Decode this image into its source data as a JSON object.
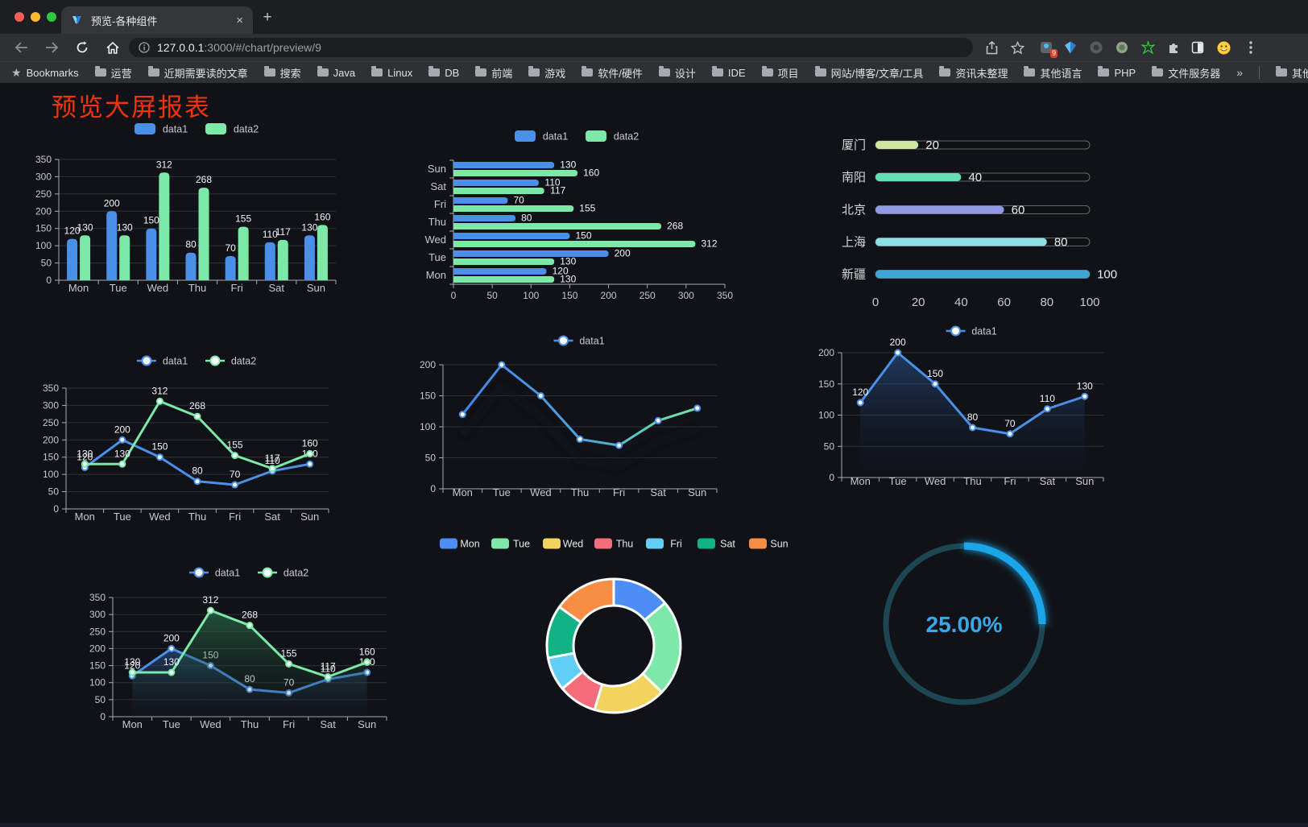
{
  "browser": {
    "tab_title": "预览-各种组件",
    "url_host": "127.0.0.1",
    "url_rest": ":3000/#/chart/preview/9",
    "bookmarks_label": "Bookmarks",
    "bookmarks": [
      "运营",
      "近期需要读的文章",
      "搜索",
      "Java",
      "Linux",
      "DB",
      "前端",
      "游戏",
      "软件/硬件",
      "设计",
      "IDE",
      "项目",
      "网站/博客/文章/工具",
      "资讯未整理",
      "其他语言",
      "PHP",
      "文件服务器"
    ],
    "bookmarks_overflow": "»",
    "other_bookmarks": "其他书签",
    "extension_badge": "9",
    "new_tab_label": "+",
    "tab_close_label": "×"
  },
  "page": {
    "title": "预览大屏报表",
    "title_color": "#f4330e",
    "background": "#111217",
    "axis_label_color": "#c6c8cb",
    "grid_color": "#31333a",
    "axis_line_color": "#a9abaf",
    "value_label_color": "#f2f3f5"
  },
  "chart_data": [
    {
      "id": "bar-vertical",
      "type": "bar",
      "title": "",
      "categories": [
        "Mon",
        "Tue",
        "Wed",
        "Thu",
        "Fri",
        "Sat",
        "Sun"
      ],
      "series": [
        {
          "name": "data1",
          "color": "#4A90E9",
          "values": [
            120,
            200,
            150,
            80,
            70,
            110,
            130
          ]
        },
        {
          "name": "data2",
          "color": "#7CE9A9",
          "values": [
            130,
            130,
            312,
            268,
            155,
            117,
            160
          ]
        }
      ],
      "ylim": [
        0,
        350
      ],
      "yticks": [
        0,
        50,
        100,
        150,
        200,
        250,
        300,
        350
      ],
      "legend_position": "top",
      "grid": true,
      "show_labels": true
    },
    {
      "id": "bar-horizontal",
      "type": "bar",
      "orientation": "horizontal",
      "categories": [
        "Mon",
        "Tue",
        "Wed",
        "Thu",
        "Fri",
        "Sat",
        "Sun"
      ],
      "categories_top_to_bottom": [
        "Sun",
        "Sat",
        "Fri",
        "Thu",
        "Wed",
        "Tue",
        "Mon"
      ],
      "series": [
        {
          "name": "data1",
          "color": "#4A90E9",
          "values": [
            120,
            200,
            150,
            80,
            70,
            110,
            130
          ]
        },
        {
          "name": "data2",
          "color": "#7CE9A9",
          "values": [
            130,
            130,
            312,
            268,
            155,
            117,
            160
          ]
        }
      ],
      "xlim": [
        0,
        350
      ],
      "xticks": [
        0,
        50,
        100,
        150,
        200,
        250,
        300,
        350
      ],
      "legend_position": "top",
      "show_labels": true
    },
    {
      "id": "progress-bars",
      "type": "bar",
      "orientation": "horizontal-progress",
      "categories": [
        "厦门",
        "南阳",
        "北京",
        "上海",
        "新疆"
      ],
      "values": [
        20,
        40,
        60,
        80,
        100
      ],
      "colors": [
        "#CBE7A2",
        "#63DFB2",
        "#9199E3",
        "#8AE0E2",
        "#3FA7D6"
      ],
      "xlim": [
        0,
        100
      ],
      "xticks": [
        0,
        20,
        40,
        60,
        80,
        100
      ],
      "track_border_color": "#63666b",
      "show_labels": true
    },
    {
      "id": "line-two-series",
      "type": "line",
      "categories": [
        "Mon",
        "Tue",
        "Wed",
        "Thu",
        "Fri",
        "Sat",
        "Sun"
      ],
      "series": [
        {
          "name": "data1",
          "color": "#4A90E9",
          "values": [
            120,
            200,
            150,
            80,
            70,
            110,
            130
          ]
        },
        {
          "name": "data2",
          "color": "#7CE9A9",
          "values": [
            130,
            130,
            312,
            268,
            155,
            117,
            160
          ]
        }
      ],
      "ylim": [
        0,
        350
      ],
      "yticks": [
        0,
        50,
        100,
        150,
        200,
        250,
        300,
        350
      ],
      "legend_position": "top",
      "show_labels": true
    },
    {
      "id": "line-gradient",
      "type": "line",
      "categories": [
        "Mon",
        "Tue",
        "Wed",
        "Thu",
        "Fri",
        "Sat",
        "Sun"
      ],
      "series": [
        {
          "name": "data1",
          "color": "#4A90E9",
          "gradient": [
            "#4285EC",
            "#49A8E0",
            "#6FE6A4"
          ],
          "values": [
            120,
            200,
            150,
            80,
            70,
            110,
            130
          ]
        }
      ],
      "ylim": [
        0,
        200
      ],
      "yticks": [
        0,
        50,
        100,
        150,
        200
      ],
      "legend_position": "top",
      "show_labels": false,
      "shadow": true
    },
    {
      "id": "line-area-single",
      "type": "area",
      "categories": [
        "Mon",
        "Tue",
        "Wed",
        "Thu",
        "Fri",
        "Sat",
        "Sun"
      ],
      "series": [
        {
          "name": "data1",
          "color": "#4A90E9",
          "area_color": "#2A5590",
          "values": [
            120,
            200,
            150,
            80,
            70,
            110,
            130
          ]
        }
      ],
      "ylim": [
        0,
        200
      ],
      "yticks": [
        0,
        50,
        100,
        150,
        200
      ],
      "legend_position": "top",
      "show_labels": true
    },
    {
      "id": "line-area-double",
      "type": "area",
      "categories": [
        "Mon",
        "Tue",
        "Wed",
        "Thu",
        "Fri",
        "Sat",
        "Sun"
      ],
      "series": [
        {
          "name": "data1",
          "color": "#4A90E9",
          "area_color": "#2E5E9E",
          "values": [
            120,
            200,
            150,
            80,
            70,
            110,
            130
          ]
        },
        {
          "name": "data2",
          "color": "#7CE9A9",
          "area_color": "#2E7D55",
          "values": [
            130,
            130,
            312,
            268,
            155,
            117,
            160
          ]
        }
      ],
      "ylim": [
        0,
        350
      ],
      "yticks": [
        0,
        50,
        100,
        150,
        200,
        250,
        300,
        350
      ],
      "legend_position": "top",
      "show_labels": true
    },
    {
      "id": "donut",
      "type": "pie",
      "labels": [
        "Mon",
        "Tue",
        "Wed",
        "Thu",
        "Fri",
        "Sat",
        "Sun"
      ],
      "values": [
        120,
        200,
        150,
        80,
        70,
        110,
        130
      ],
      "colors": [
        "#4C8DF6",
        "#7DE8A9",
        "#F2D35B",
        "#F56C7B",
        "#63CEF5",
        "#11B385",
        "#F78E43"
      ],
      "inner_radius_ratio": 0.6,
      "border_color": "#ffffff",
      "legend_position": "top"
    },
    {
      "id": "gauge",
      "type": "gauge",
      "value": 25,
      "label": "25.00%",
      "progress_color": "#1BA6EA",
      "track_color": "#1C4752",
      "text_color": "#38A9E8"
    }
  ]
}
